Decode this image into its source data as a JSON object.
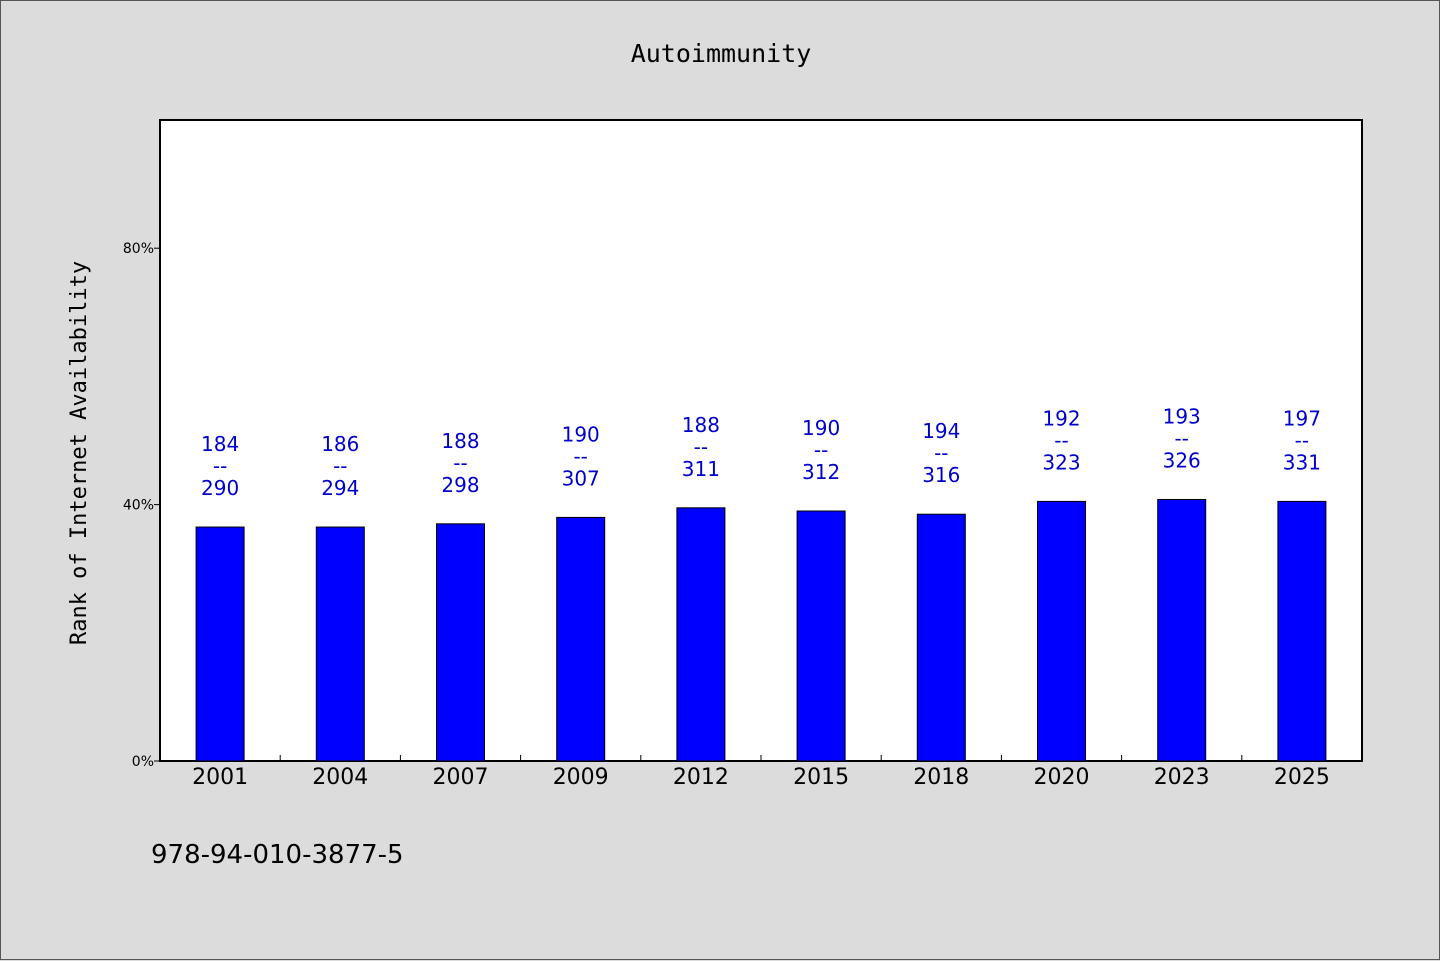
{
  "chart_data": {
    "type": "bar",
    "title": "Autoimmunity",
    "xlabel": "",
    "ylabel": "Rank of Internet Availability",
    "categories": [
      "2001",
      "2004",
      "2007",
      "2009",
      "2012",
      "2015",
      "2018",
      "2020",
      "2023",
      "2025"
    ],
    "values": [
      0.365,
      0.365,
      0.37,
      0.38,
      0.395,
      0.39,
      0.385,
      0.405,
      0.408,
      0.405
    ],
    "data_labels": [
      {
        "top": "184",
        "sep": "--",
        "bottom": "290"
      },
      {
        "top": "186",
        "sep": "--",
        "bottom": "294"
      },
      {
        "top": "188",
        "sep": "--",
        "bottom": "298"
      },
      {
        "top": "190",
        "sep": "--",
        "bottom": "307"
      },
      {
        "top": "188",
        "sep": "--",
        "bottom": "311"
      },
      {
        "top": "190",
        "sep": "--",
        "bottom": "312"
      },
      {
        "top": "194",
        "sep": "--",
        "bottom": "316"
      },
      {
        "top": "192",
        "sep": "--",
        "bottom": "323"
      },
      {
        "top": "193",
        "sep": "--",
        "bottom": "326"
      },
      {
        "top": "197",
        "sep": "--",
        "bottom": "331"
      }
    ],
    "ylim": [
      0,
      1.0
    ],
    "yticks": [
      0,
      0.4,
      0.8
    ],
    "ytick_labels": [
      "0%",
      "40%",
      "80%"
    ],
    "grid": false,
    "bar_color": "#0000ff",
    "label_color": "#0000cc"
  },
  "footer": {
    "text": "978-94-010-3877-5"
  }
}
